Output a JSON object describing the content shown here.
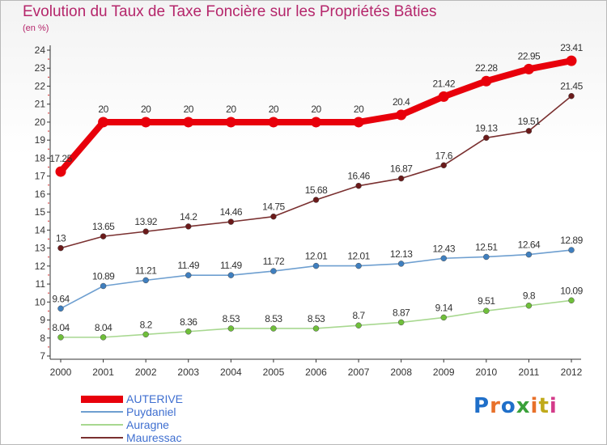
{
  "title": "Evolution du Taux de Taxe Foncière sur les Propriétés Bâties",
  "subtitle": "(en %)",
  "logo_text": "Proxiti",
  "logo_colors": [
    "#1f6fc9",
    "#e8712a",
    "#1f6fc9",
    "#3aa13a",
    "#e8712a",
    "#c0aa1a",
    "#d43b8a"
  ],
  "colors": {
    "title": "#b5266b",
    "axis": "#333333",
    "grid_dots": "#d62f2f",
    "label": "#333333"
  },
  "chart_data": {
    "type": "line",
    "title": "Evolution du Taux de Taxe Foncière sur les Propriétés Bâties",
    "subtitle": "(en %)",
    "x": [
      2000,
      2001,
      2002,
      2003,
      2004,
      2005,
      2006,
      2007,
      2008,
      2009,
      2010,
      2011,
      2012
    ],
    "ylim": [
      7,
      24
    ],
    "yticks": [
      7,
      8,
      9,
      10,
      11,
      12,
      13,
      14,
      15,
      16,
      17,
      18,
      19,
      20,
      21,
      22,
      23,
      24
    ],
    "legend_position": "bottom-left",
    "series": [
      {
        "name": "AUTERIVE",
        "color": "#e8000b",
        "marker_color": "#e8000b",
        "emphasis": "thick",
        "values": [
          17.25,
          20,
          20,
          20,
          20,
          20,
          20,
          20,
          20.4,
          21.42,
          22.28,
          22.95,
          23.41
        ],
        "labels": [
          "17.25",
          "20",
          "20",
          "20",
          "20",
          "20",
          "20",
          "20",
          "20.4",
          "21.42",
          "22.28",
          "22.95",
          "23.41"
        ]
      },
      {
        "name": "Puydaniel",
        "color": "#6e9fd0",
        "marker_color": "#3f7fbf",
        "emphasis": "normal",
        "values": [
          9.64,
          10.89,
          11.21,
          11.49,
          11.49,
          11.72,
          12.01,
          12.01,
          12.13,
          12.43,
          12.51,
          12.64,
          12.89
        ],
        "labels": [
          "9.64",
          "10.89",
          "11.21",
          "11.49",
          "11.49",
          "11.72",
          "12.01",
          "12.01",
          "12.13",
          "12.43",
          "12.51",
          "12.64",
          "12.89"
        ]
      },
      {
        "name": "Auragne",
        "color": "#a8d890",
        "marker_color": "#6fbf3a",
        "emphasis": "normal",
        "values": [
          8.04,
          8.04,
          8.2,
          8.36,
          8.53,
          8.53,
          8.53,
          8.7,
          8.87,
          9.14,
          9.51,
          9.8,
          10.09
        ],
        "labels": [
          "8.04",
          "8.04",
          "8.2",
          "8.36",
          "8.53",
          "8.53",
          "8.53",
          "8.7",
          "8.87",
          "9.14",
          "9.51",
          "9.8",
          "10.09"
        ]
      },
      {
        "name": "Mauressac",
        "color": "#7a3030",
        "marker_color": "#6b1a1a",
        "emphasis": "normal",
        "values": [
          13,
          13.65,
          13.92,
          14.2,
          14.46,
          14.75,
          15.68,
          16.46,
          16.87,
          17.6,
          19.13,
          19.51,
          21.45
        ],
        "labels": [
          "13",
          "13.65",
          "13.92",
          "14.2",
          "14.46",
          "14.75",
          "15.68",
          "16.46",
          "16.87",
          "17.6",
          "19.13",
          "19.51",
          "21.45"
        ]
      }
    ]
  }
}
